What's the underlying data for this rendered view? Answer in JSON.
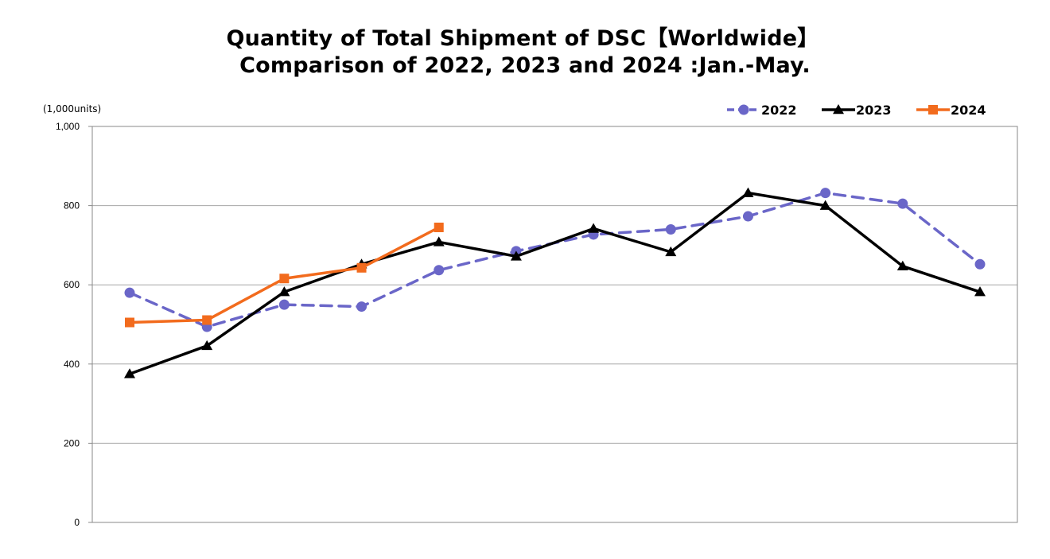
{
  "chart_data": {
    "type": "line",
    "title": "Quantity of Total Shipment of DSC【Worldwide】",
    "subtitle": "Comparison of 2022, 2023 and 2024 :Jan.-May.",
    "unit_label": "(1,000units)",
    "ylim": [
      0,
      1000
    ],
    "y_ticks": [
      {
        "value": 0,
        "label": "0"
      },
      {
        "value": 200,
        "label": "200"
      },
      {
        "value": 400,
        "label": "400"
      },
      {
        "value": 600,
        "label": "600"
      },
      {
        "value": 800,
        "label": "800"
      },
      {
        "value": 1000,
        "label": "1,000"
      }
    ],
    "x_count": 12,
    "grid": true,
    "legend_position": "top-right",
    "series": [
      {
        "name": "2022",
        "color": "#6a66c8",
        "marker": "circle",
        "dash": true,
        "values": [
          580,
          494,
          550,
          545,
          637,
          685,
          727,
          740,
          773,
          832,
          805,
          652
        ]
      },
      {
        "name": "2023",
        "color": "#000000",
        "marker": "triangle",
        "dash": false,
        "values": [
          375,
          446,
          582,
          652,
          708,
          672,
          742,
          683,
          832,
          800,
          647,
          582
        ]
      },
      {
        "name": "2024",
        "color": "#f26b1d",
        "marker": "square",
        "dash": false,
        "values": [
          505,
          511,
          616,
          643,
          745
        ]
      }
    ]
  }
}
